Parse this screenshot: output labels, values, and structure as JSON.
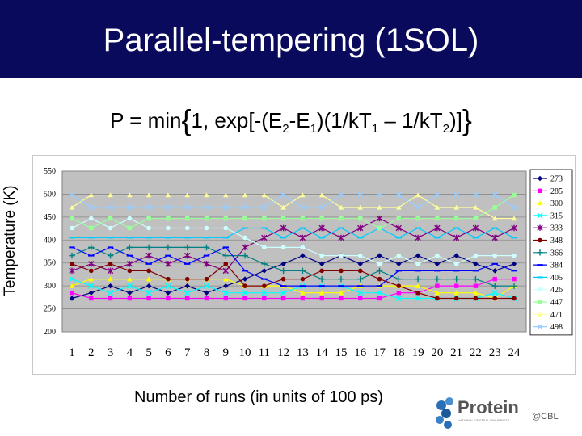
{
  "slide": {
    "title": "Parallel-tempering (1SOL)",
    "header_color": "#0a0a5c",
    "formula": {
      "p1": "P = min",
      "lbrace": "{",
      "p2": "1, exp[-(E",
      "s1": "2",
      "p3": "-E",
      "s2": "1",
      "p4": ")(1/kT",
      "s3": "1",
      "p5": " – 1/kT",
      "s4": "2",
      "p6": ")]",
      "rbrace": "}"
    },
    "y_axis_label": "Temperature (K)",
    "x_axis_label": "Number of runs (in units of 100 ps)"
  },
  "logo": {
    "word": "Protein",
    "suffix": "@CBL",
    "tagline": "NATIONAL CENTRAL UNIVERSITY"
  },
  "chart_data": {
    "type": "line",
    "x": [
      1,
      2,
      3,
      4,
      5,
      6,
      7,
      8,
      9,
      10,
      11,
      12,
      13,
      14,
      15,
      16,
      17,
      18,
      19,
      20,
      21,
      22,
      23,
      24
    ],
    "ylim": [
      200,
      550
    ],
    "yticks": [
      200,
      250,
      300,
      350,
      400,
      450,
      500,
      550
    ],
    "grid": "horizontal",
    "legend_position": "right",
    "plot_background": "#c0c0c0",
    "series": [
      {
        "name": "273",
        "color": "#000080",
        "marker": "diamond",
        "values": [
          273,
          285,
          300,
          285,
          300,
          285,
          300,
          285,
          300,
          315,
          333,
          348,
          366,
          348,
          366,
          348,
          366,
          348,
          366,
          348,
          366,
          348,
          333,
          348
        ]
      },
      {
        "name": "285",
        "color": "#ff00ff",
        "marker": "square",
        "values": [
          285,
          273,
          273,
          273,
          273,
          273,
          273,
          273,
          273,
          273,
          273,
          273,
          273,
          273,
          273,
          273,
          273,
          285,
          285,
          300,
          300,
          300,
          315,
          315
        ]
      },
      {
        "name": "300",
        "color": "#ffff00",
        "marker": "triangle",
        "values": [
          300,
          315,
          315,
          315,
          315,
          315,
          315,
          315,
          315,
          300,
          300,
          300,
          285,
          285,
          285,
          300,
          300,
          300,
          300,
          285,
          285,
          285,
          273,
          300
        ]
      },
      {
        "name": "315",
        "color": "#00ffff",
        "marker": "x",
        "values": [
          315,
          300,
          285,
          300,
          285,
          300,
          285,
          300,
          285,
          285,
          285,
          285,
          300,
          300,
          300,
          285,
          285,
          273,
          273,
          273,
          273,
          273,
          285,
          273
        ]
      },
      {
        "name": "333",
        "color": "#800080",
        "marker": "star",
        "values": [
          333,
          348,
          333,
          348,
          366,
          348,
          366,
          348,
          333,
          384,
          405,
          426,
          405,
          426,
          405,
          426,
          447,
          426,
          405,
          426,
          405,
          426,
          405,
          426
        ]
      },
      {
        "name": "348",
        "color": "#800000",
        "marker": "circle",
        "values": [
          348,
          333,
          348,
          333,
          333,
          315,
          315,
          315,
          348,
          300,
          300,
          315,
          315,
          333,
          333,
          333,
          315,
          300,
          285,
          273,
          273,
          273,
          273,
          273
        ]
      },
      {
        "name": "366",
        "color": "#008080",
        "marker": "plus",
        "values": [
          366,
          384,
          366,
          384,
          384,
          384,
          384,
          384,
          366,
          366,
          348,
          333,
          333,
          315,
          315,
          315,
          333,
          315,
          315,
          315,
          315,
          315,
          300,
          300
        ]
      },
      {
        "name": "384",
        "color": "#0000ff",
        "marker": "dash",
        "values": [
          384,
          366,
          384,
          366,
          348,
          366,
          348,
          366,
          384,
          333,
          315,
          300,
          300,
          300,
          300,
          300,
          300,
          333,
          333,
          333,
          333,
          333,
          348,
          333
        ]
      },
      {
        "name": "405",
        "color": "#00ccff",
        "marker": "dash",
        "values": [
          405,
          405,
          405,
          405,
          405,
          405,
          405,
          405,
          405,
          426,
          426,
          405,
          426,
          405,
          426,
          405,
          426,
          405,
          426,
          405,
          426,
          405,
          426,
          405
        ]
      },
      {
        "name": "426",
        "color": "#ccffff",
        "marker": "circle",
        "values": [
          426,
          447,
          426,
          447,
          426,
          426,
          426,
          426,
          426,
          405,
          384,
          384,
          384,
          366,
          366,
          366,
          348,
          366,
          348,
          366,
          348,
          366,
          366,
          366
        ]
      },
      {
        "name": "447",
        "color": "#99ff99",
        "marker": "square",
        "values": [
          447,
          426,
          447,
          426,
          447,
          447,
          447,
          447,
          447,
          447,
          447,
          447,
          447,
          447,
          447,
          447,
          426,
          447,
          447,
          447,
          447,
          447,
          471,
          498
        ]
      },
      {
        "name": "471",
        "color": "#ffff99",
        "marker": "triangle",
        "values": [
          471,
          498,
          498,
          498,
          498,
          498,
          498,
          498,
          498,
          498,
          498,
          471,
          498,
          498,
          471,
          471,
          471,
          471,
          498,
          471,
          471,
          471,
          447,
          447
        ]
      },
      {
        "name": "498",
        "color": "#99ccff",
        "marker": "x",
        "values": [
          498,
          471,
          471,
          471,
          471,
          471,
          471,
          471,
          471,
          471,
          471,
          498,
          471,
          471,
          498,
          498,
          498,
          498,
          471,
          498,
          498,
          498,
          498,
          471
        ]
      }
    ]
  }
}
